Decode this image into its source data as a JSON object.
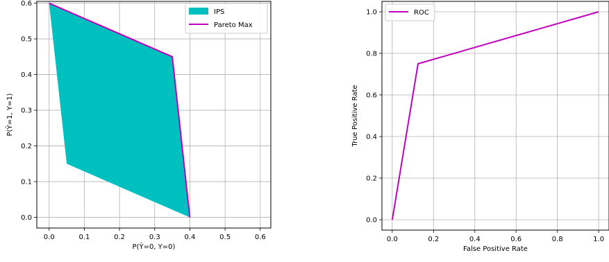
{
  "chart_data": [
    {
      "type": "area",
      "xlabel": "P(Ŷ=0, Y=0)",
      "ylabel": "P(Ŷ=1, Y=1)",
      "xlim": [
        -0.035,
        0.63
      ],
      "ylim": [
        -0.03,
        0.605
      ],
      "xticks": [
        0.0,
        0.1,
        0.2,
        0.3,
        0.4,
        0.5,
        0.6
      ],
      "xtick_labels": [
        "0.0",
        "0.1",
        "0.2",
        "0.3",
        "0.4",
        "0.5",
        "0.6"
      ],
      "yticks": [
        0.0,
        0.1,
        0.2,
        0.3,
        0.4,
        0.5,
        0.6
      ],
      "ytick_labels": [
        "0.0",
        "0.1",
        "0.2",
        "0.3",
        "0.4",
        "0.5",
        "0.6"
      ],
      "grid": true,
      "legend_position": "top-right",
      "series": [
        {
          "name": "IPS",
          "kind": "polygon",
          "color": "#00bfbf",
          "points": [
            [
              0.0,
              0.6
            ],
            [
              0.35,
              0.45
            ],
            [
              0.4,
              0.0
            ],
            [
              0.05,
              0.15
            ]
          ]
        },
        {
          "name": "Pareto Max",
          "kind": "line",
          "color": "#bf00bf",
          "x": [
            0.0,
            0.35,
            0.4
          ],
          "y": [
            0.6,
            0.45,
            0.0
          ]
        }
      ]
    },
    {
      "type": "line",
      "xlabel": "False Positive Rate",
      "ylabel": "True Positive Rate",
      "xlim": [
        -0.05,
        1.05
      ],
      "ylim": [
        -0.05,
        1.05
      ],
      "xticks": [
        0.0,
        0.2,
        0.4,
        0.6,
        0.8,
        1.0
      ],
      "xtick_labels": [
        "0.0",
        "0.2",
        "0.4",
        "0.6",
        "0.8",
        "1.0"
      ],
      "yticks": [
        0.0,
        0.2,
        0.4,
        0.6,
        0.8,
        1.0
      ],
      "ytick_labels": [
        "0.0",
        "0.2",
        "0.4",
        "0.6",
        "0.8",
        "1.0"
      ],
      "grid": true,
      "legend_position": "top-left",
      "series": [
        {
          "name": "ROC",
          "kind": "line",
          "color": "#bf00bf",
          "x": [
            0.0,
            0.125,
            1.0
          ],
          "y": [
            0.0,
            0.75,
            1.0
          ]
        }
      ]
    }
  ]
}
